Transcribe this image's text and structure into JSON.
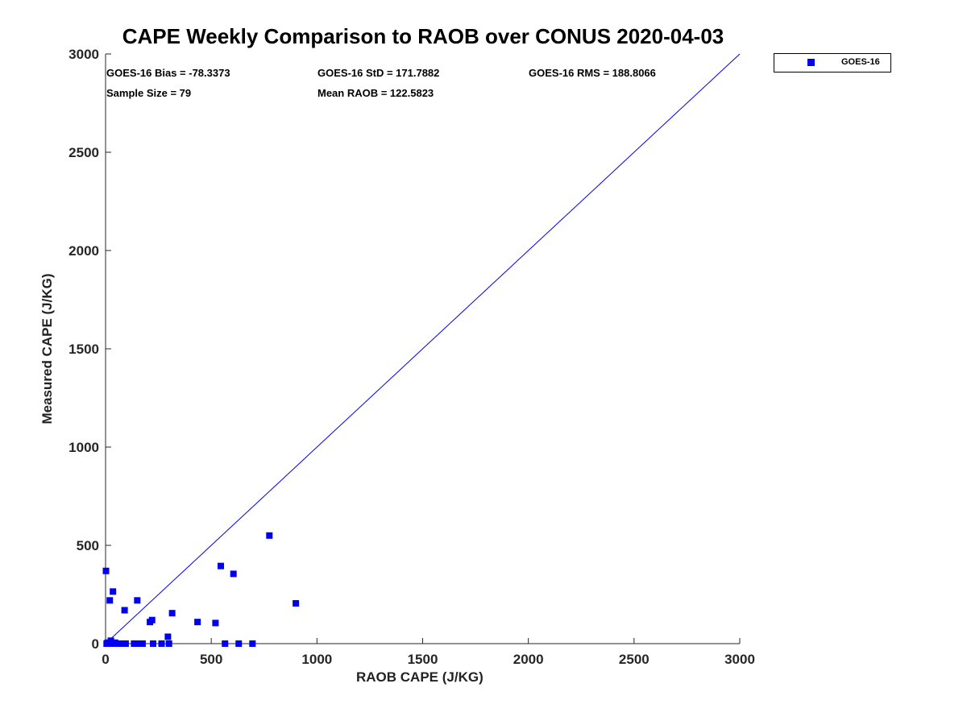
{
  "chart_data": {
    "type": "scatter",
    "title": "CAPE Weekly Comparison to RAOB over CONUS 2020-04-03",
    "xlabel": "RAOB CAPE (J/KG)",
    "ylabel": "Measured CAPE (J/KG)",
    "xlim": [
      0,
      3000
    ],
    "ylim": [
      0,
      3000
    ],
    "xticks": [
      0,
      500,
      1000,
      1500,
      2000,
      2500,
      3000
    ],
    "yticks": [
      0,
      500,
      1000,
      1500,
      2000,
      2500,
      3000
    ],
    "grid": false,
    "legend_position": "outside-top-right",
    "reference_line": {
      "label": "one-to-one",
      "x": [
        0,
        3000
      ],
      "y": [
        0,
        3000
      ]
    },
    "series": [
      {
        "name": "GOES-16",
        "color": "#0000ee",
        "marker": "square",
        "x": [
          2,
          5,
          10,
          15,
          20,
          22,
          25,
          28,
          30,
          35,
          40,
          45,
          55,
          60,
          70,
          80,
          90,
          95,
          135,
          150,
          155,
          165,
          175,
          210,
          220,
          225,
          265,
          295,
          300,
          315,
          435,
          520,
          545,
          565,
          605,
          630,
          695,
          775,
          900
        ],
        "y": [
          370,
          0,
          5,
          0,
          220,
          0,
          15,
          0,
          5,
          265,
          0,
          5,
          0,
          0,
          0,
          0,
          170,
          0,
          0,
          220,
          0,
          0,
          0,
          110,
          120,
          0,
          0,
          35,
          0,
          155,
          110,
          105,
          395,
          0,
          355,
          0,
          0,
          550,
          205
        ]
      }
    ]
  },
  "stats": {
    "bias": "GOES-16 Bias = -78.3373",
    "std": "GOES-16 StD = 171.7882",
    "rms": "GOES-16 RMS = 188.8066",
    "sample_size": "Sample Size = 79",
    "mean_raob": "Mean RAOB = 122.5823"
  },
  "legend": {
    "label": "GOES-16",
    "color": "#0000ee"
  }
}
